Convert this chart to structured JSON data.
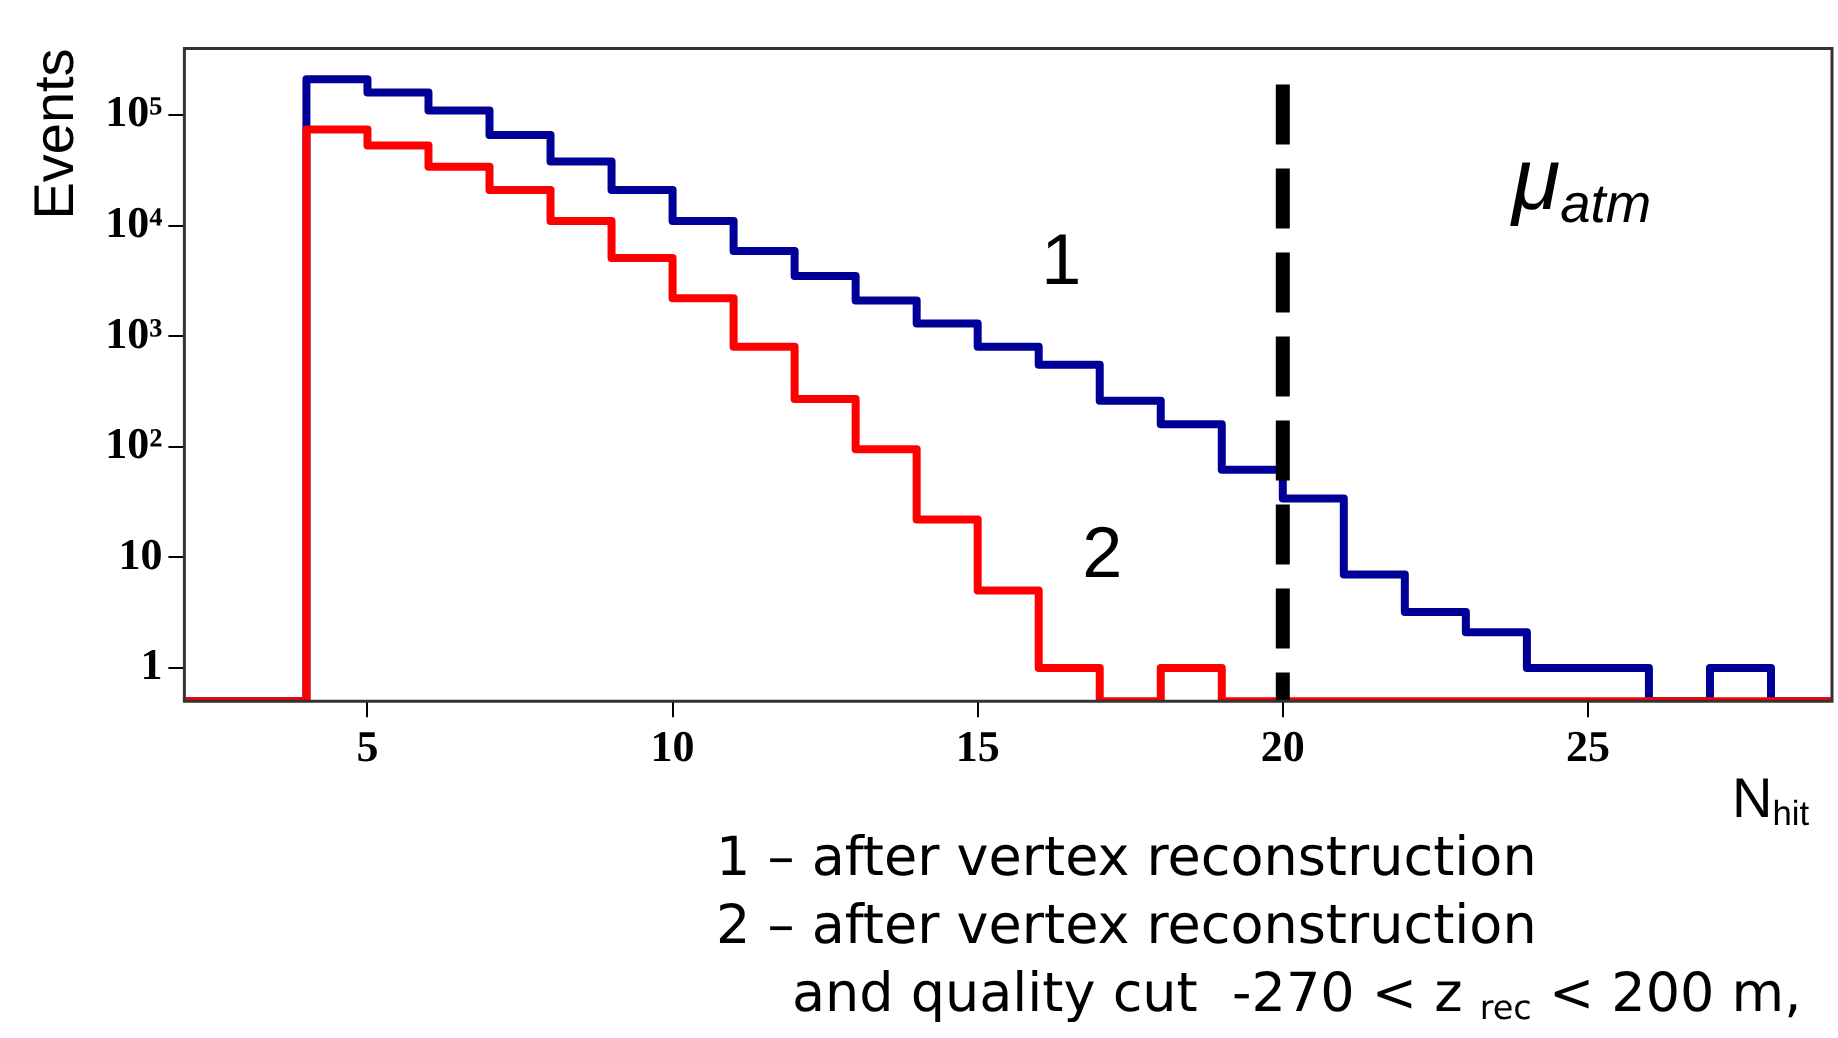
{
  "chart_data": {
    "type": "histogram",
    "xlabel": "N$_{hit}$",
    "ylabel": "Events",
    "bins": [
      2,
      3,
      4,
      5,
      6,
      7,
      8,
      9,
      10,
      11,
      12,
      13,
      14,
      15,
      16,
      17,
      18,
      19,
      20,
      21,
      22,
      23,
      24,
      25,
      26,
      27,
      28,
      29
    ],
    "series": [
      {
        "color": "#000099",
        "values": [
          null,
          null,
          210000,
          160000,
          110000,
          66000,
          38000,
          21000,
          11000,
          5900,
          3500,
          2100,
          1300,
          800,
          550,
          260,
          160,
          62,
          34,
          7,
          3.2,
          2.1,
          1,
          1,
          null,
          1,
          null
        ]
      },
      {
        "color": "#ff0000",
        "values": [
          null,
          null,
          74000,
          53000,
          34000,
          21000,
          11000,
          5100,
          2200,
          800,
          270,
          95,
          22,
          5,
          1,
          null,
          1,
          null,
          null,
          null,
          null,
          null,
          null,
          null,
          null,
          null,
          null
        ]
      }
    ],
    "log": "y",
    "xlim": [
      2,
      29
    ],
    "ylim": [
      0.5,
      400000
    ],
    "xticks": [
      5,
      10,
      15,
      20,
      25
    ],
    "yticks": [
      1,
      10,
      {
        "value": 100,
        "label": "10²"
      },
      {
        "value": 1000,
        "label": "10³"
      },
      {
        "value": 10000,
        "label": "10⁴"
      },
      {
        "value": 100000,
        "label": "10⁵"
      }
    ],
    "grid": false,
    "legend": false,
    "ref_lines": [
      {
        "axis": "x",
        "value": 20,
        "color": "#000000",
        "line_style": "dashed"
      }
    ],
    "annotations": [
      "1",
      "2",
      "μ$_{atm}$",
      "1 – after vertex reconstruction",
      "2 – after vertex reconstruction",
      "and quality cut  -270 < z $_{rec}$ < 200 m,"
    ]
  }
}
